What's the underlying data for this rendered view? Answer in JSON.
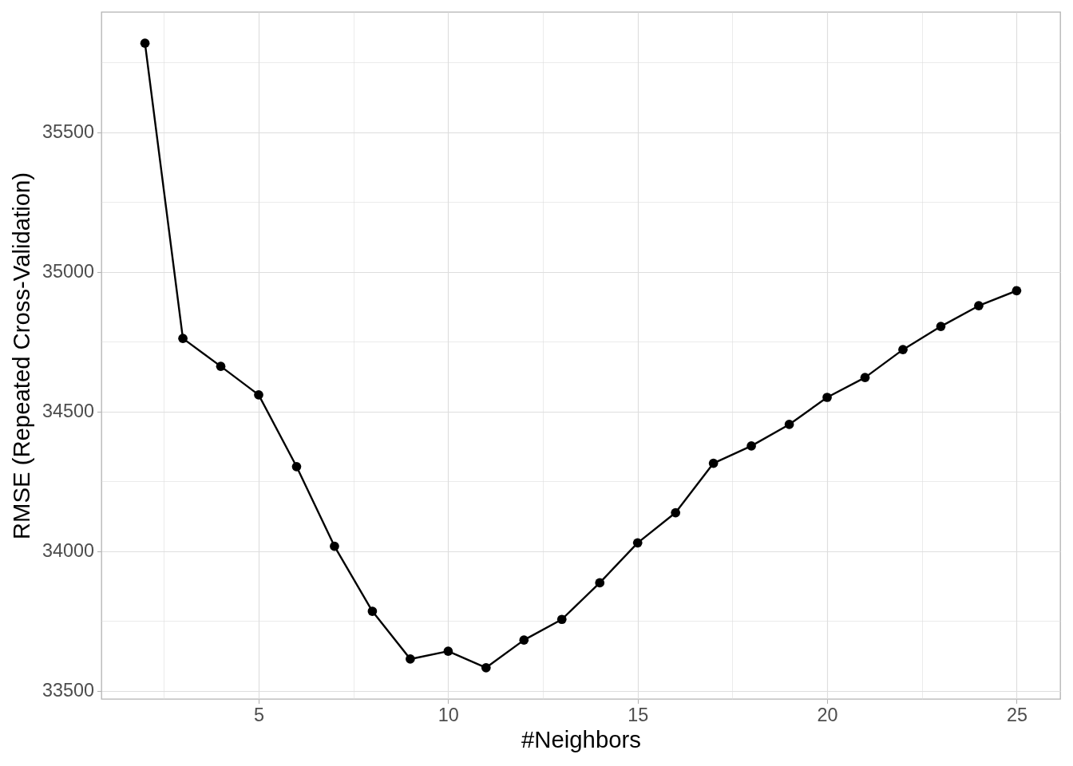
{
  "chart_data": {
    "type": "line",
    "xlabel": "#Neighbors",
    "ylabel": "RMSE (Repeated Cross-Validation)",
    "x": [
      2,
      3,
      4,
      5,
      6,
      7,
      8,
      9,
      10,
      11,
      12,
      13,
      14,
      15,
      16,
      17,
      18,
      19,
      20,
      21,
      22,
      23,
      24,
      25
    ],
    "series": [
      {
        "color": "#000000",
        "values": [
          35819,
          34762,
          34662,
          34560,
          34303,
          34018,
          33785,
          33614,
          33642,
          33583,
          33682,
          33756,
          33887,
          34030,
          34138,
          34315,
          34377,
          34454,
          34551,
          34622,
          34722,
          34805,
          34879,
          34933
        ]
      }
    ],
    "xlim": [
      0.85,
      26.15
    ],
    "ylim": [
      33471,
      35931
    ],
    "xticks": [
      {
        "value": 2.5,
        "label": null
      },
      5,
      {
        "value": 7.5,
        "label": null
      },
      10,
      {
        "value": 12.5,
        "label": null
      },
      15,
      {
        "value": 17.5,
        "label": null
      },
      20,
      {
        "value": 22.5,
        "label": null
      },
      25
    ],
    "yticks": [
      33500,
      {
        "value": 33750,
        "label": null
      },
      34000,
      {
        "value": 34250,
        "label": null
      },
      34500,
      {
        "value": 34750,
        "label": null
      },
      35000,
      {
        "value": 35250,
        "label": null
      },
      35500,
      {
        "value": 35750,
        "label": null
      }
    ],
    "grid": true,
    "marker": "circle",
    "line_style": "solid"
  }
}
